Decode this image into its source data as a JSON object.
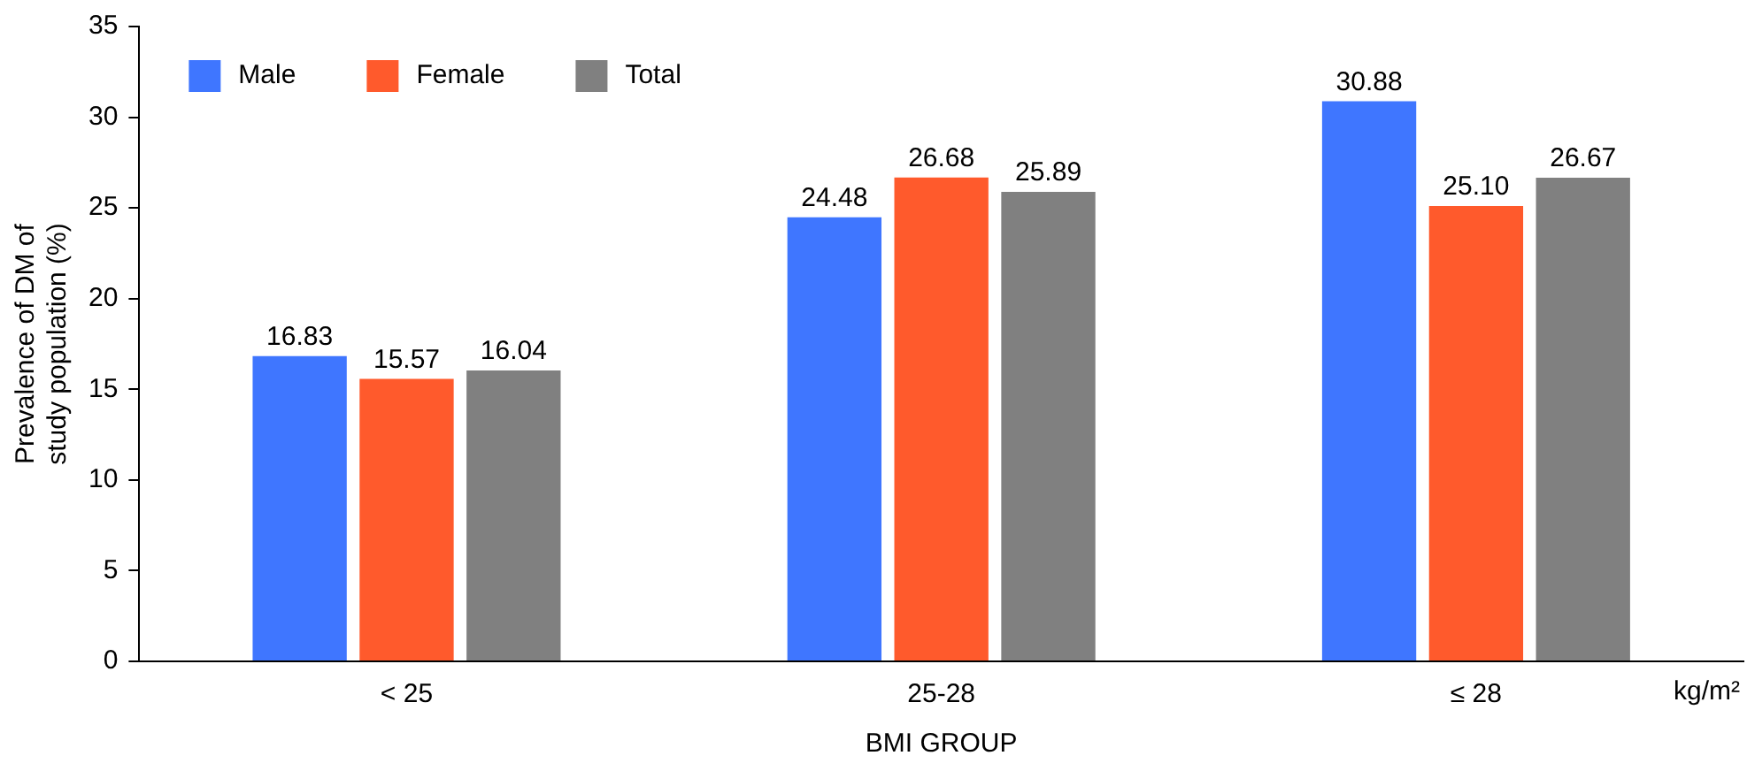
{
  "chart_data": {
    "type": "bar",
    "xlabel": "BMI GROUP",
    "ylabel": "Prevalence of DM of study population (%)",
    "categories": [
      "< 25",
      "25-28",
      "≤ 28"
    ],
    "series": [
      {
        "name": "Male",
        "color": "#3f76ff",
        "values": [
          16.83,
          24.48,
          30.88
        ]
      },
      {
        "name": "Female",
        "color": "#ff5a2c",
        "values": [
          15.57,
          26.68,
          25.1
        ]
      },
      {
        "name": "Total",
        "color": "#808080",
        "values": [
          16.04,
          25.89,
          26.67
        ]
      }
    ],
    "value_labels": [
      [
        "16.83",
        "24.48",
        "30.88"
      ],
      [
        "15.57",
        "26.68",
        "25.10"
      ],
      [
        "16.04",
        "25.89",
        "26.67"
      ]
    ],
    "ylim": [
      0,
      35
    ],
    "yticks": [
      0,
      5,
      10,
      15,
      20,
      25,
      30,
      35
    ],
    "grid": false,
    "legend": "top left",
    "annotations": [
      "kg/m²"
    ]
  }
}
